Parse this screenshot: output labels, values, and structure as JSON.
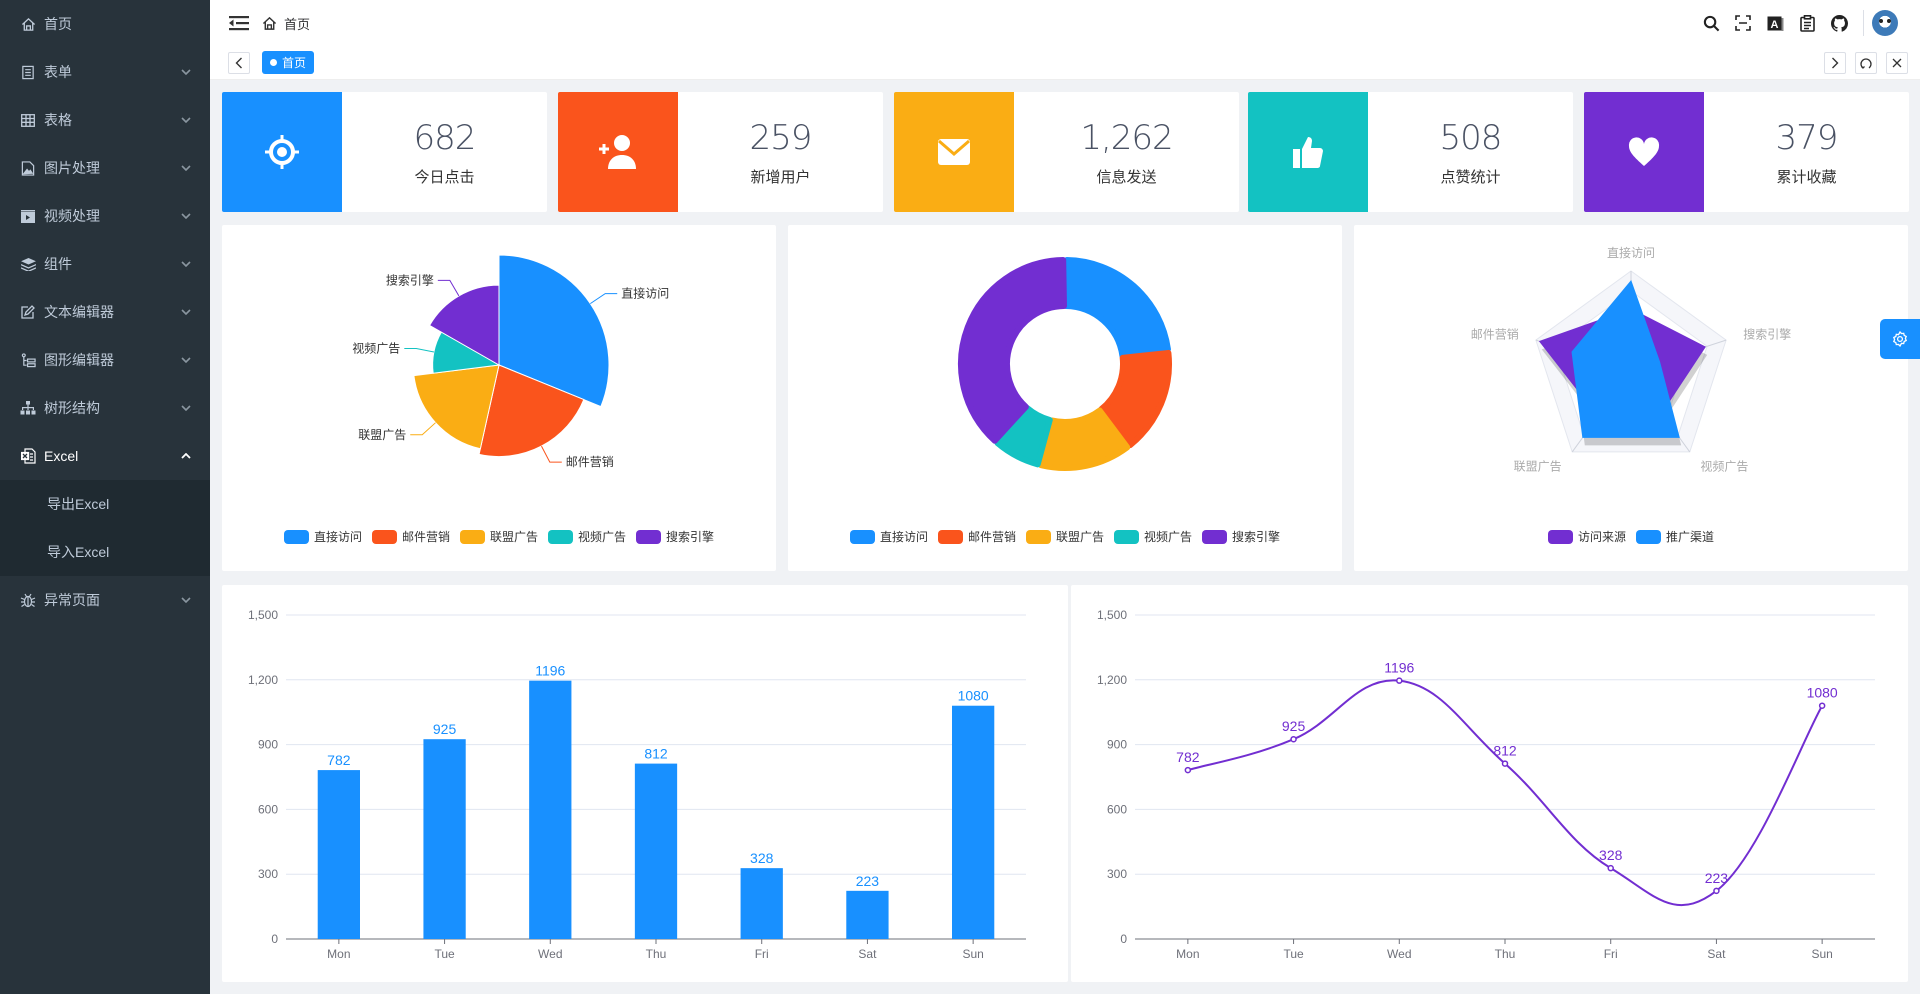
{
  "sidebar": {
    "items": [
      {
        "label": "首页",
        "icon": "home-icon",
        "has_children": false
      },
      {
        "label": "表单",
        "icon": "form-icon",
        "has_children": true
      },
      {
        "label": "表格",
        "icon": "table-icon",
        "has_children": true
      },
      {
        "label": "图片处理",
        "icon": "image-icon",
        "has_children": true
      },
      {
        "label": "视频处理",
        "icon": "video-icon",
        "has_children": true
      },
      {
        "label": "组件",
        "icon": "layers-icon",
        "has_children": true
      },
      {
        "label": "文本编辑器",
        "icon": "edit-icon",
        "has_children": true
      },
      {
        "label": "图形编辑器",
        "icon": "flow-icon",
        "has_children": true
      },
      {
        "label": "树形结构",
        "icon": "tree-icon",
        "has_children": true
      },
      {
        "label": "Excel",
        "icon": "excel-icon",
        "has_children": true,
        "expanded": true,
        "children": [
          {
            "label": "导出Excel"
          },
          {
            "label": "导入Excel"
          }
        ]
      },
      {
        "label": "异常页面",
        "icon": "bug-icon",
        "has_children": true
      }
    ]
  },
  "header": {
    "breadcrumb": "首页",
    "tools": [
      "search-icon",
      "fullscreen-icon",
      "font-size-icon",
      "clipboard-icon",
      "github-icon"
    ]
  },
  "tags": {
    "active": "首页"
  },
  "stats": [
    {
      "value": "682",
      "label": "今日点击",
      "icon": "target-icon",
      "color": "#1890ff"
    },
    {
      "value": "259",
      "label": "新增用户",
      "icon": "add-user-icon",
      "color": "#fa541c"
    },
    {
      "value": "1,262",
      "label": "信息发送",
      "icon": "mail-icon",
      "color": "#faad14"
    },
    {
      "value": "508",
      "label": "点赞统计",
      "icon": "thumbs-up-icon",
      "color": "#13c2c2"
    },
    {
      "value": "379",
      "label": "累计收藏",
      "icon": "heart-icon",
      "color": "#722ed1"
    }
  ],
  "colors": {
    "primary": "#1890ff",
    "palette": [
      "#1890ff",
      "#fa541c",
      "#faad14",
      "#13c2c2",
      "#722ed1"
    ]
  },
  "chart_data": [
    {
      "type": "pie",
      "subtype": "rose",
      "title": "",
      "categories": [
        "直接访问",
        "邮件营销",
        "联盟广告",
        "视频广告",
        "搜索引擎"
      ],
      "values": [
        335,
        240,
        210,
        110,
        180
      ],
      "legend": [
        "直接访问",
        "邮件营销",
        "联盟广告",
        "视频广告",
        "搜索引擎"
      ],
      "legend_position": "bottom"
    },
    {
      "type": "pie",
      "subtype": "donut",
      "title": "",
      "categories": [
        "直接访问",
        "邮件营销",
        "联盟广告",
        "视频广告",
        "搜索引擎"
      ],
      "values": [
        335,
        240,
        210,
        110,
        560
      ],
      "legend": [
        "直接访问",
        "邮件营销",
        "联盟广告",
        "视频广告",
        "搜索引擎"
      ],
      "legend_position": "bottom"
    },
    {
      "type": "radar",
      "title": "",
      "indicators": [
        "直接访问",
        "搜索引擎",
        "视频广告",
        "联盟广告",
        "邮件营销"
      ],
      "series": [
        {
          "name": "访问来源",
          "values": [
            0.62,
            0.78,
            0.52,
            0.56,
            0.96
          ]
        },
        {
          "name": "推广渠道",
          "values": [
            0.9,
            0.3,
            0.82,
            0.82,
            0.62
          ]
        }
      ],
      "legend": [
        "访问来源",
        "推广渠道"
      ],
      "legend_position": "bottom"
    },
    {
      "type": "bar",
      "title": "",
      "categories": [
        "Mon",
        "Tue",
        "Wed",
        "Thu",
        "Fri",
        "Sat",
        "Sun"
      ],
      "values": [
        782,
        925,
        1196,
        812,
        328,
        223,
        1080
      ],
      "yticks": [
        "0",
        "300",
        "600",
        "900",
        "1,200",
        "1,500"
      ],
      "ylim": [
        0,
        1500
      ],
      "xlabel": "",
      "ylabel": "",
      "grid": true
    },
    {
      "type": "line",
      "title": "",
      "smooth": true,
      "categories": [
        "Mon",
        "Tue",
        "Wed",
        "Thu",
        "Fri",
        "Sat",
        "Sun"
      ],
      "values": [
        782,
        925,
        1196,
        812,
        328,
        223,
        1080
      ],
      "yticks": [
        "0",
        "300",
        "600",
        "900",
        "1,200",
        "1,500"
      ],
      "ylim": [
        0,
        1500
      ],
      "xlabel": "",
      "ylabel": "",
      "grid": true
    }
  ]
}
